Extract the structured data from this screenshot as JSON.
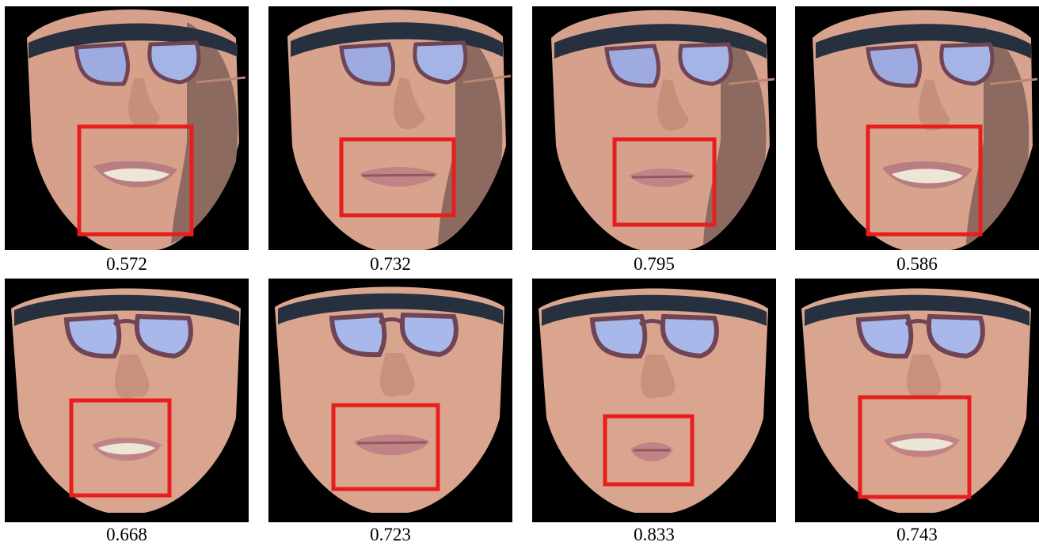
{
  "figure": {
    "rows": [
      {
        "cells": [
          {
            "score": "0.572",
            "style": "video",
            "mouth": "open-teeth"
          },
          {
            "score": "0.732",
            "style": "video",
            "mouth": "closed"
          },
          {
            "score": "0.795",
            "style": "video",
            "mouth": "closed"
          },
          {
            "score": "0.586",
            "style": "video",
            "mouth": "open-teeth"
          }
        ]
      },
      {
        "cells": [
          {
            "score": "0.668",
            "style": "render",
            "mouth": "open-teeth"
          },
          {
            "score": "0.723",
            "style": "render",
            "mouth": "closed"
          },
          {
            "score": "0.833",
            "style": "render",
            "mouth": "pursed"
          },
          {
            "score": "0.743",
            "style": "render",
            "mouth": "open-teeth"
          }
        ]
      }
    ],
    "colors": {
      "background": "#000000",
      "skin": "#d9a58f",
      "skin_shadow": "#b98570",
      "lip": "#c98a8c",
      "teeth": "#e9e4d6",
      "glasses_frame": "#6f4556",
      "lens": "#a8b8ea",
      "hair": "#26303f",
      "highlight_box": "#e81d1d"
    }
  }
}
